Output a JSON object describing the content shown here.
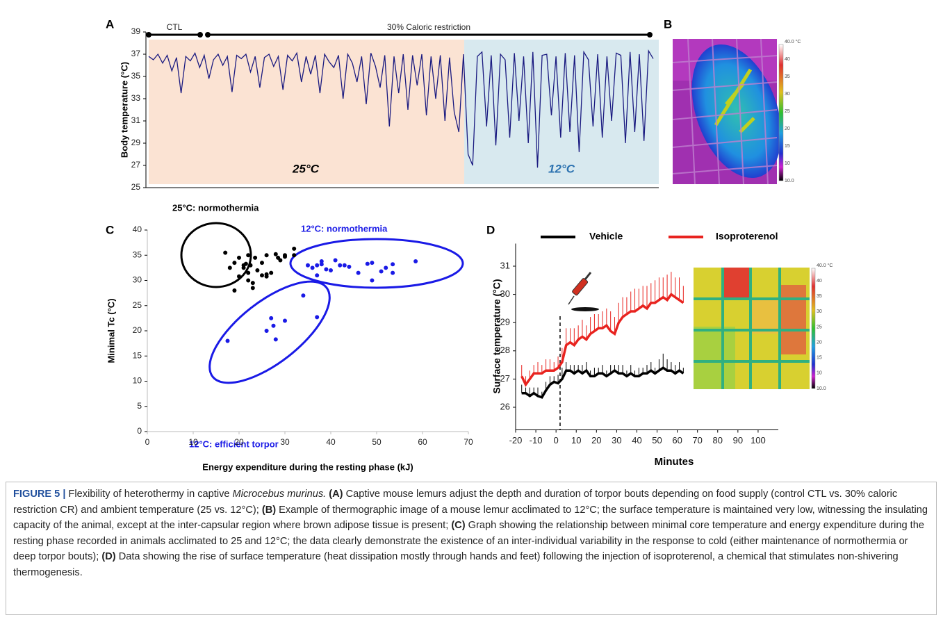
{
  "panels": {
    "letters": [
      "A",
      "B",
      "C",
      "D"
    ],
    "B": {
      "colorbar_labels": [
        "40.0 °C",
        "40",
        "35",
        "30",
        "25",
        "20",
        "15",
        "10",
        "10.0"
      ]
    },
    "D": {
      "colorbar_labels": [
        "40.0 °C",
        "40",
        "35",
        "30",
        "25",
        "20",
        "15",
        "10",
        "10.0"
      ]
    }
  },
  "chart_data": [
    {
      "type": "line",
      "ylabel": "Body temperature (°C)",
      "ylim": [
        25,
        39
      ],
      "yticks": [
        25,
        27,
        29,
        31,
        33,
        35,
        37,
        39
      ],
      "color": "#1a1a80",
      "annotations": [
        "CTL",
        "30% Caloric restriction",
        "25°C",
        "12°C"
      ],
      "values": [
        36.8,
        36.5,
        37.0,
        36.2,
        36.9,
        35.5,
        36.7,
        33.5,
        36.8,
        36.4,
        37.1,
        35.8,
        36.9,
        34.8,
        36.5,
        37.0,
        36.0,
        36.8,
        33.6,
        36.9,
        36.6,
        37.0,
        35.4,
        36.8,
        34.0,
        36.7,
        37.0,
        35.9,
        36.8,
        33.8,
        36.9,
        36.4,
        37.1,
        34.5,
        36.8,
        35.2,
        36.9,
        33.5,
        37.0,
        36.3,
        35.8,
        36.9,
        33.0,
        37.0,
        36.2,
        34.5,
        36.8,
        32.5,
        37.1,
        35.9,
        34.0,
        36.9,
        30.5,
        36.8,
        33.5,
        37.0,
        32.0,
        36.9,
        34.2,
        37.0,
        31.5,
        36.8,
        33.0,
        36.9,
        31.0,
        36.7,
        31.8,
        30.0,
        37.0,
        28.0,
        27.0,
        36.8,
        37.2,
        30.5,
        36.9,
        28.8,
        37.0,
        36.5,
        29.5,
        37.1,
        31.0,
        36.8,
        29.0,
        37.2,
        26.8,
        36.9,
        37.0,
        31.5,
        36.8,
        29.5,
        37.1,
        30.0,
        36.9,
        28.2,
        37.2,
        36.5,
        30.5,
        37.0,
        29.5,
        36.8,
        31.0,
        37.1,
        36.9,
        29.0,
        37.2,
        30.0,
        37.0,
        29.2,
        37.3,
        36.6
      ]
    },
    {
      "type": "scatter",
      "xlabel": "Energy expenditure during the resting phase (kJ)",
      "ylabel": "Minimal Tc (°C)",
      "xlim": [
        0,
        70
      ],
      "xticks": [
        0,
        10,
        20,
        30,
        40,
        50,
        60,
        70
      ],
      "ylim": [
        0,
        40
      ],
      "yticks": [
        0,
        5,
        10,
        15,
        20,
        25,
        30,
        35,
        40
      ],
      "series": [
        {
          "name": "25°C: normothermia",
          "color": "#000000",
          "x": [
            17,
            18,
            19,
            20,
            20,
            21,
            21,
            21.5,
            22,
            22,
            22,
            22.5,
            23,
            23,
            24,
            25,
            25,
            26,
            26,
            27,
            28,
            28.5,
            29,
            30,
            30,
            32,
            32,
            19,
            23.5,
            26
          ],
          "values": [
            35.5,
            32.5,
            28,
            30.8,
            34.5,
            33,
            32.5,
            33.3,
            31.5,
            35,
            30,
            33,
            29.5,
            28.5,
            32,
            33.5,
            31,
            35,
            30.8,
            31.5,
            35.2,
            34.5,
            34,
            35,
            34.7,
            36.3,
            35,
            33.5,
            34.5,
            31.2
          ]
        },
        {
          "name": "12°C: normothermia",
          "color": "#1a1ae6",
          "x": [
            35,
            36,
            37,
            37,
            38,
            38,
            39,
            40,
            41,
            42,
            43,
            44,
            46,
            48,
            49,
            49,
            51,
            52,
            53.5,
            53.5,
            58.5
          ],
          "values": [
            33,
            32.5,
            31,
            33,
            33.8,
            33.2,
            32.2,
            32,
            34,
            33,
            33,
            32.7,
            31.5,
            33.3,
            33.5,
            30,
            31.8,
            32.5,
            33.2,
            31.5,
            33.8
          ]
        },
        {
          "name": "12°C: efficient torpor",
          "color": "#1a1ae6",
          "x": [
            17.5,
            26,
            27,
            27.5,
            28,
            30,
            34,
            37
          ],
          "values": [
            18,
            20,
            22.5,
            21,
            18.3,
            22,
            27,
            22.7
          ]
        }
      ]
    },
    {
      "type": "line",
      "xlabel": "Minutes",
      "ylabel": "Surface temperature (°C)",
      "xlim": [
        -20,
        110
      ],
      "xticks": [
        -20,
        -10,
        0,
        10,
        20,
        30,
        40,
        50,
        60,
        70,
        80,
        90,
        100
      ],
      "ylim": [
        25.2,
        31.8
      ],
      "yticks": [
        26,
        27,
        28,
        29,
        30,
        31
      ],
      "vline_x": 2,
      "x": [
        -17,
        -15,
        -13,
        -11,
        -9,
        -7,
        -5,
        -3,
        -1,
        1,
        3,
        5,
        7,
        9,
        11,
        13,
        15,
        17,
        19,
        21,
        23,
        25,
        27,
        29,
        31,
        33,
        35,
        37,
        39,
        41,
        43,
        45,
        47,
        49,
        51,
        53,
        55,
        57,
        59,
        61,
        63
      ],
      "series": [
        {
          "name": "Vehicle",
          "color": "#000000",
          "values": [
            26.5,
            26.5,
            26.4,
            26.5,
            26.4,
            26.35,
            26.6,
            26.8,
            26.9,
            26.85,
            27.0,
            27.3,
            27.3,
            27.2,
            27.3,
            27.2,
            27.3,
            27.1,
            27.1,
            27.2,
            27.2,
            27.1,
            27.2,
            27.3,
            27.2,
            27.2,
            27.1,
            27.2,
            27.1,
            27.1,
            27.2,
            27.2,
            27.3,
            27.2,
            27.3,
            27.4,
            27.3,
            27.3,
            27.2,
            27.3,
            27.2
          ],
          "errors": [
            0.3,
            0.2,
            0.3,
            0.2,
            0.3,
            0.2,
            0.3,
            0.3,
            0.2,
            0.3,
            0.4,
            0.3,
            0.2,
            0.3,
            0.2,
            0.3,
            0.3,
            0.2,
            0.3,
            0.2,
            0.3,
            0.2,
            0.3,
            0.2,
            0.3,
            0.3,
            0.2,
            0.3,
            0.2,
            0.3,
            0.2,
            0.3,
            0.3,
            0.2,
            0.4,
            0.5,
            0.4,
            0.3,
            0.3,
            0.3,
            0.2
          ]
        },
        {
          "name": "Isoproterenol",
          "color": "#e8231f",
          "values": [
            27.1,
            26.8,
            27.0,
            27.2,
            27.2,
            27.2,
            27.3,
            27.3,
            27.3,
            27.4,
            27.6,
            28.2,
            28.3,
            28.2,
            28.4,
            28.5,
            28.4,
            28.6,
            28.7,
            28.8,
            28.8,
            28.9,
            28.7,
            28.6,
            29.0,
            29.2,
            29.3,
            29.4,
            29.4,
            29.5,
            29.6,
            29.5,
            29.7,
            29.7,
            29.8,
            29.9,
            29.8,
            30.0,
            29.9,
            29.8,
            29.7
          ],
          "errors": [
            0.4,
            0.3,
            0.3,
            0.3,
            0.4,
            0.3,
            0.4,
            0.4,
            0.3,
            0.4,
            0.5,
            0.6,
            0.5,
            0.6,
            0.5,
            0.6,
            0.5,
            0.6,
            0.6,
            0.5,
            0.6,
            0.6,
            0.7,
            0.6,
            0.7,
            0.7,
            0.6,
            0.7,
            0.8,
            0.7,
            0.7,
            0.8,
            0.7,
            0.8,
            0.8,
            0.7,
            0.9,
            0.8,
            0.7,
            0.8,
            0.6
          ]
        }
      ]
    }
  ],
  "caption": {
    "parts": [
      "FIGURE 5 |",
      " Flexibility of heterothermy in captive ",
      "Microcebus murinus.",
      " (A)",
      " Captive mouse lemurs adjust the depth and duration of torpor bouts depending on food supply (control CTL vs. 30% caloric restriction CR) and ambient temperature (25 vs. 12°C); ",
      "(B)",
      " Example of thermographic image of a mouse lemur acclimated to 12°C; the surface temperature is maintained very low, witnessing the insulating capacity of the animal, except at the inter-capsular region where brown adipose tissue is present; ",
      "(C)",
      " Graph showing the relationship between minimal core temperature and energy expenditure during the resting phase recorded in animals acclimated to 25 and 12°C; the data clearly demonstrate the existence of an inter-individual variability in the response to cold (either maintenance of normothermia or deep torpor bouts); ",
      "(D)",
      " Data showing the rise of surface temperature (heat dissipation mostly through hands and feet) following the injection of isoproterenol, a chemical that stimulates non-shivering thermogenesis."
    ]
  }
}
